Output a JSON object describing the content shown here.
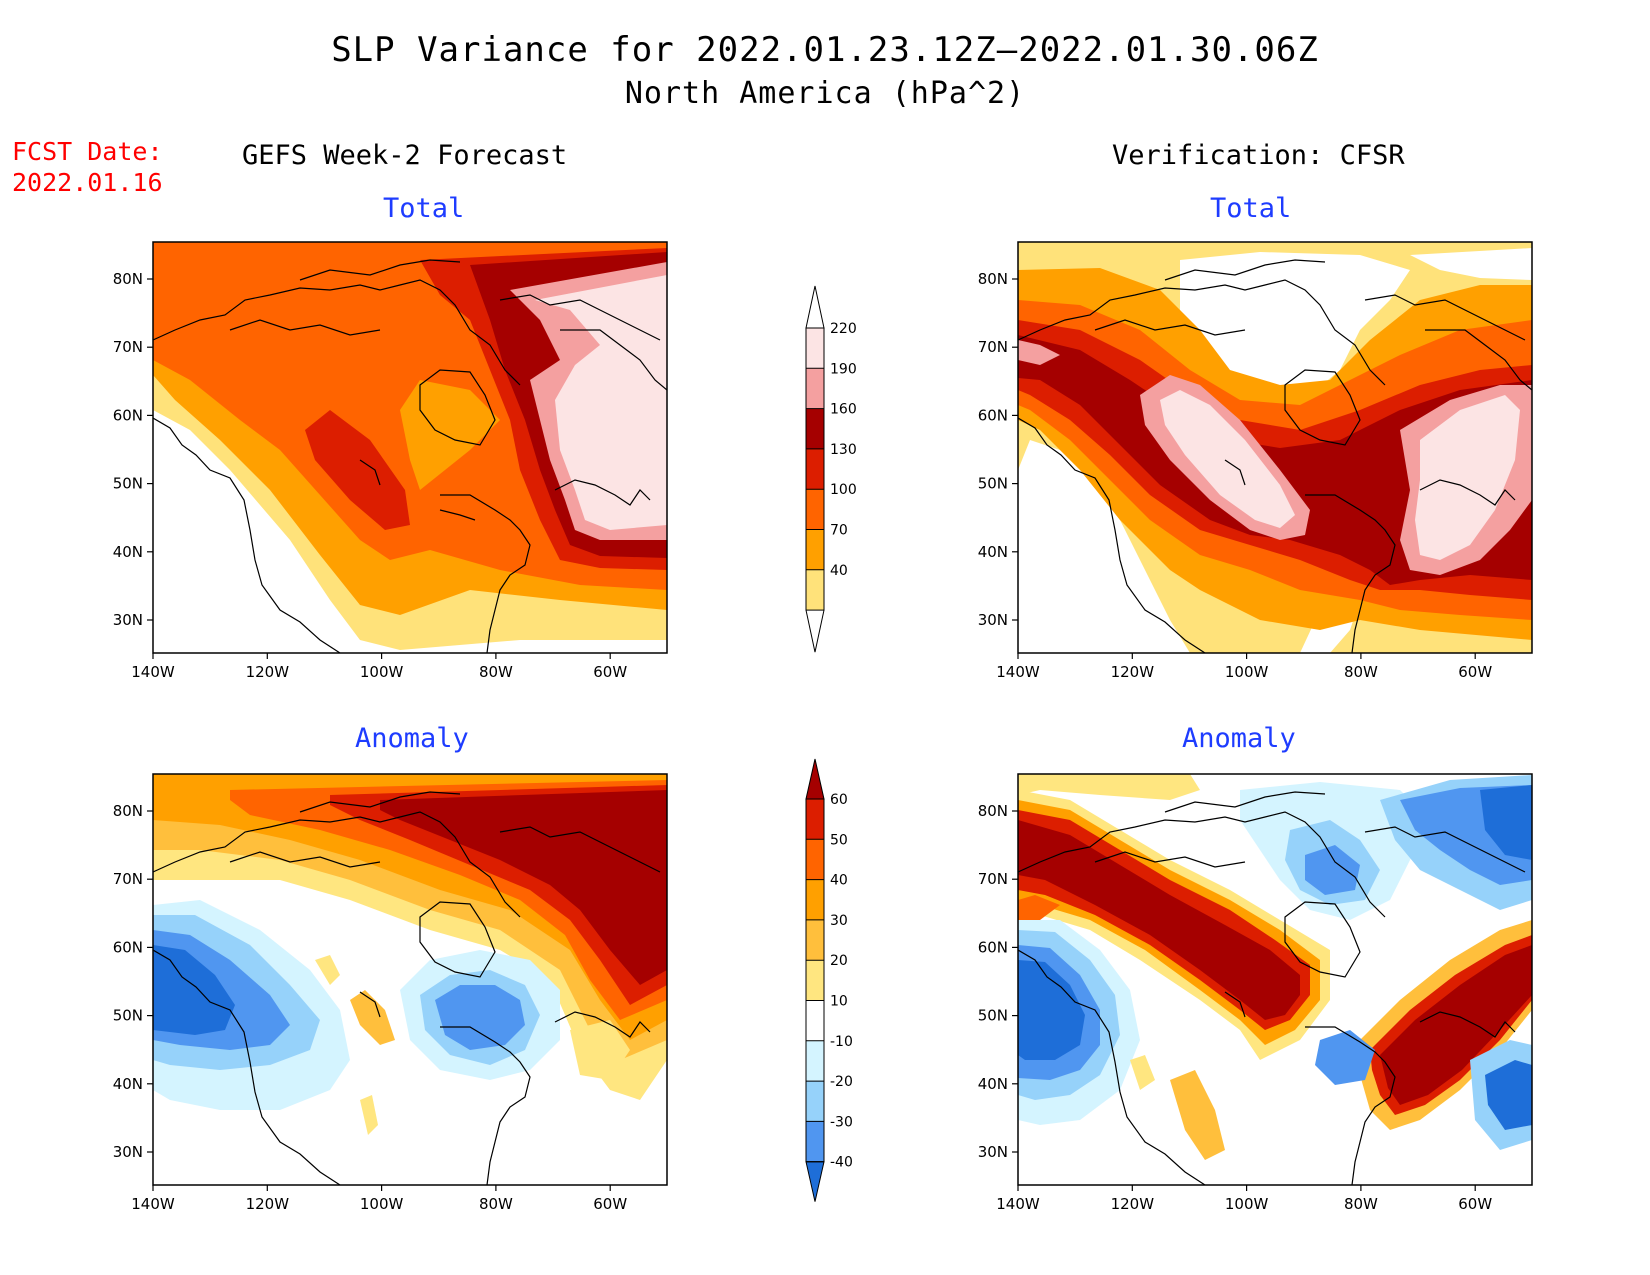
{
  "title": "SLP Variance for 2022.01.23.12Z–2022.01.30.06Z",
  "subtitle": "North America (hPa^2)",
  "fcst_date": {
    "label": "FCST Date:",
    "value": "2022.01.16"
  },
  "columns": {
    "left": "GEFS Week-2 Forecast",
    "right": "Verification: CFSR"
  },
  "panels": {
    "tl": "Total",
    "tr": "Total",
    "bl": "Anomaly",
    "br": "Anomaly"
  },
  "axes": {
    "lat_labels": [
      "80N",
      "70N",
      "60N",
      "50N",
      "40N",
      "30N"
    ],
    "lon_labels": [
      "140W",
      "120W",
      "100W",
      "80W",
      "60W"
    ]
  },
  "colorbar_total": {
    "levels": [
      "220",
      "190",
      "160",
      "130",
      "100",
      "70",
      "40"
    ],
    "colors": [
      "#fce4e4",
      "#f4a0a0",
      "#a50000",
      "#dc1e00",
      "#ff6400",
      "#ffa000",
      "#ffe27a"
    ]
  },
  "colorbar_anomaly": {
    "levels": [
      "60",
      "50",
      "40",
      "30",
      "20",
      "10",
      "-10",
      "-20",
      "-30",
      "-40"
    ],
    "colors": [
      "#a50000",
      "#dc1e00",
      "#ff6400",
      "#ffa000",
      "#ffbf3c",
      "#ffe680",
      "#ffffff",
      "#d4f4ff",
      "#96d2fa",
      "#5096f0",
      "#1e6ed8"
    ]
  },
  "colors": {
    "title_red": "#ff0000",
    "panel_blue": "#1e3cff"
  }
}
